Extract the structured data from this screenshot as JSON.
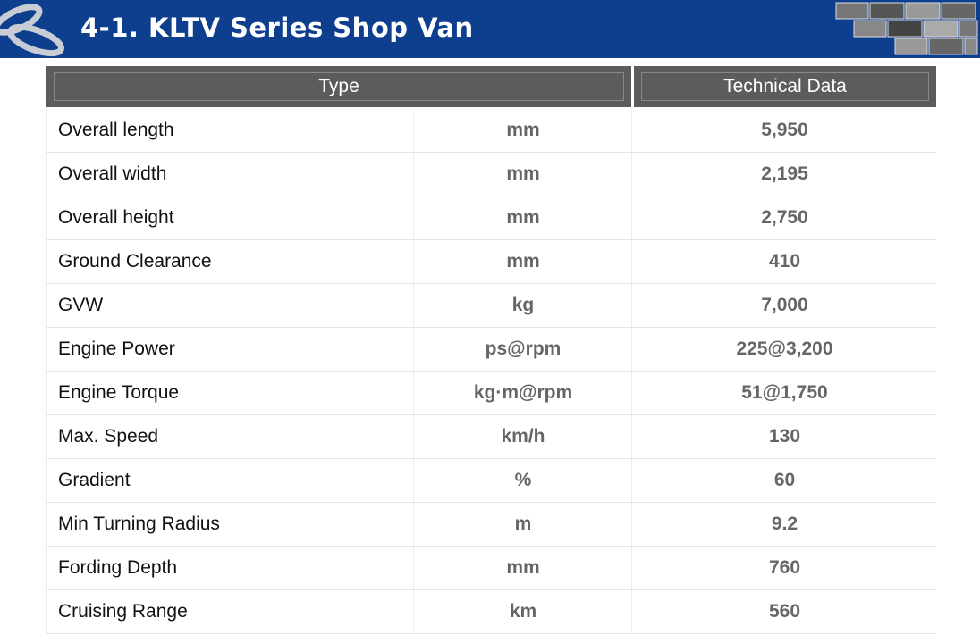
{
  "header": {
    "title": "4-1. KLTV Series Shop Van"
  },
  "table": {
    "columns": [
      "Type",
      "Technical Data"
    ],
    "rows": [
      [
        "Overall length",
        "mm",
        "5,950"
      ],
      [
        "Overall width",
        "mm",
        "2,195"
      ],
      [
        "Overall height",
        "mm",
        "2,750"
      ],
      [
        "Ground Clearance",
        "mm",
        "410"
      ],
      [
        "GVW",
        "kg",
        "7,000"
      ],
      [
        "Engine Power",
        "ps@rpm",
        "225@3,200"
      ],
      [
        "Engine Torque",
        "kg·m@rpm",
        "51@1,750"
      ],
      [
        "Max. Speed",
        "km/h",
        "130"
      ],
      [
        "Gradient",
        "%",
        "60"
      ],
      [
        "Min Turning Radius",
        "m",
        "9.2"
      ],
      [
        "Fording Depth",
        "mm",
        "760"
      ],
      [
        "Cruising Range",
        "km",
        "560"
      ]
    ]
  }
}
